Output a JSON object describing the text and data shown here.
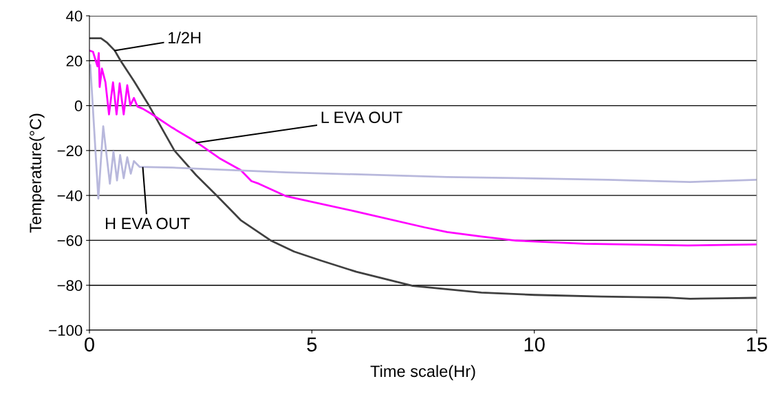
{
  "chart_data": {
    "type": "line",
    "xlabel": "Time scale(Hr)",
    "ylabel": "Temperature(°C)",
    "xlim": [
      0,
      15
    ],
    "xticks": [
      0,
      5,
      10,
      15
    ],
    "ylim": [
      -100,
      40
    ],
    "yticks": [
      -100,
      -80,
      -60,
      -40,
      -20,
      0,
      20,
      40
    ],
    "grid": "y",
    "legend": false,
    "marker": "none",
    "line_style": "solid",
    "series": [
      {
        "color": "#404040",
        "x": [
          0,
          0.26,
          0.4,
          0.57,
          0.7,
          1.0,
          1.34,
          1.91,
          2.4,
          2.86,
          3.4,
          4.07,
          4.6,
          5.2,
          6.0,
          7.27,
          8.81,
          10.0,
          11.5,
          13.0,
          13.5,
          14.3,
          15
        ],
        "values": [
          30,
          30,
          28,
          24.5,
          20,
          11,
          0,
          -20,
          -31,
          -40,
          -51,
          -60,
          -65,
          -69,
          -74,
          -80.3,
          -83.3,
          -84.3,
          -85,
          -85.5,
          -86,
          -85.8,
          -85.6
        ]
      },
      {
        "color": "#ff00ff",
        "x": [
          0,
          0.08,
          0.18,
          0.21,
          0.23,
          0.28,
          0.36,
          0.44,
          0.53,
          0.61,
          0.68,
          0.77,
          0.85,
          0.92,
          1.0,
          1.08,
          1.2,
          1.38,
          1.86,
          2.41,
          2.92,
          3.4,
          3.64,
          3.81,
          4.43,
          5.98,
          7.53,
          8.04,
          8.81,
          9.59,
          11.13,
          13.45,
          15
        ],
        "values": [
          24.5,
          24,
          17.5,
          23.4,
          8.3,
          16.5,
          10.4,
          -3.9,
          10.4,
          -3.9,
          9.9,
          -3.9,
          9.1,
          0.1,
          3.4,
          -0.4,
          -1.4,
          -3.5,
          -9.8,
          -16.3,
          -23.4,
          -28.7,
          -33.6,
          -34.8,
          -40.4,
          -47.1,
          -54.2,
          -56.3,
          -58.3,
          -60.1,
          -61.5,
          -62.3,
          -61.8
        ]
      },
      {
        "color": "#b8b8dc",
        "x": [
          0.02,
          0.2,
          0.31,
          0.46,
          0.54,
          0.62,
          0.69,
          0.77,
          0.85,
          0.93,
          1.0,
          1.13,
          1.86,
          4.43,
          8.04,
          8.81,
          11.65,
          13.5,
          15
        ],
        "values": [
          18,
          -41.4,
          -9.2,
          -34.8,
          -20.5,
          -33.3,
          -22,
          -32.3,
          -23,
          -30.3,
          -24.7,
          -27.3,
          -27.6,
          -29.7,
          -31.8,
          -32,
          -33,
          -34,
          -33
        ]
      }
    ],
    "annotations": [
      {
        "text": "1/2H",
        "x": 0.57,
        "y": 24.5
      },
      {
        "text": "L EVA OUT",
        "x": 2.4,
        "y": -16.5
      },
      {
        "text": "H EVA OUT",
        "x": 1.2,
        "y": -27.6
      }
    ]
  }
}
